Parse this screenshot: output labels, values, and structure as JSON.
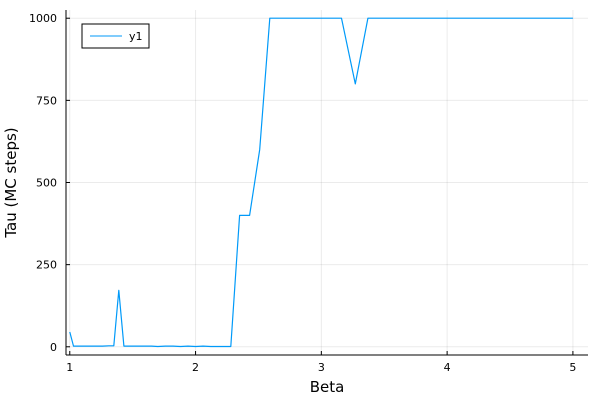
{
  "chart_data": {
    "type": "line",
    "xlabel": "Beta",
    "ylabel": "Tau (MC steps)",
    "xlim": [
      0.97,
      5.12
    ],
    "ylim": [
      -25,
      1025
    ],
    "xticks": [
      1,
      2,
      3,
      4,
      5
    ],
    "xtick_labels": [
      "1",
      "2",
      "3",
      "4",
      "5"
    ],
    "yticks": [
      0,
      250,
      500,
      750,
      1000
    ],
    "ytick_labels": [
      "0",
      "250",
      "500",
      "750",
      "1000"
    ],
    "grid": true,
    "legend_position": "top-left",
    "series": [
      {
        "name": "y1",
        "color": "#009af9",
        "x": [
          1.0,
          1.03,
          1.08,
          1.14,
          1.2,
          1.26,
          1.31,
          1.35,
          1.39,
          1.43,
          1.48,
          1.53,
          1.59,
          1.65,
          1.7,
          1.76,
          1.82,
          1.88,
          1.94,
          2.0,
          2.06,
          2.12,
          2.18,
          2.23,
          2.28,
          2.35,
          2.43,
          2.51,
          2.59,
          2.67,
          2.75,
          2.85,
          2.95,
          3.05,
          3.16,
          3.27,
          3.37,
          3.5,
          3.7,
          3.9,
          4.1,
          4.3,
          4.5,
          4.7,
          4.9,
          5.0
        ],
        "y": [
          45,
          2,
          2,
          2,
          2,
          2,
          3,
          3,
          172,
          2,
          2,
          2,
          2,
          2,
          1,
          2,
          2,
          1,
          2,
          1,
          2,
          1,
          1,
          1,
          1,
          400,
          400,
          600,
          1000,
          1000,
          1000,
          1000,
          1000,
          1000,
          1000,
          800,
          1000,
          1000,
          1000,
          1000,
          1000,
          1000,
          1000,
          1000,
          1000,
          1000
        ]
      }
    ]
  }
}
